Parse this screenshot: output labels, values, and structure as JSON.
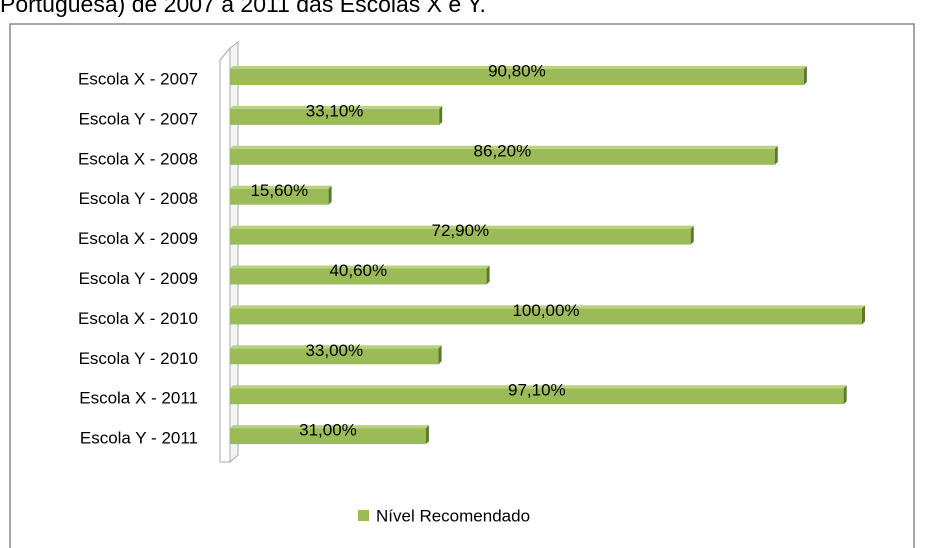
{
  "chart_data": {
    "type": "bar",
    "orientation": "horizontal",
    "title": "Portuguesa) de 2007 a 2011 das Escolas X e Y.",
    "categories": [
      "Escola X - 2007",
      "Escola Y - 2007",
      "Escola X - 2008",
      "Escola Y - 2008",
      "Escola X - 2009",
      "Escola Y - 2009",
      "Escola X - 2010",
      "Escola Y - 2010",
      "Escola X - 2011",
      "Escola Y - 2011"
    ],
    "series": [
      {
        "name": "Nível Recomendado",
        "color": "#9bbb59",
        "values": [
          90.8,
          33.1,
          86.2,
          15.6,
          72.9,
          40.6,
          100,
          33,
          97.1,
          31
        ],
        "value_labels": [
          "90,80%",
          "33,10%",
          "86,20%",
          "15,60%",
          "72,90%",
          "40,60%",
          "100,00%",
          "33,00%",
          "97,10%",
          "31,00%"
        ]
      }
    ],
    "xlim": [
      0,
      100
    ],
    "legend": "bottom"
  }
}
